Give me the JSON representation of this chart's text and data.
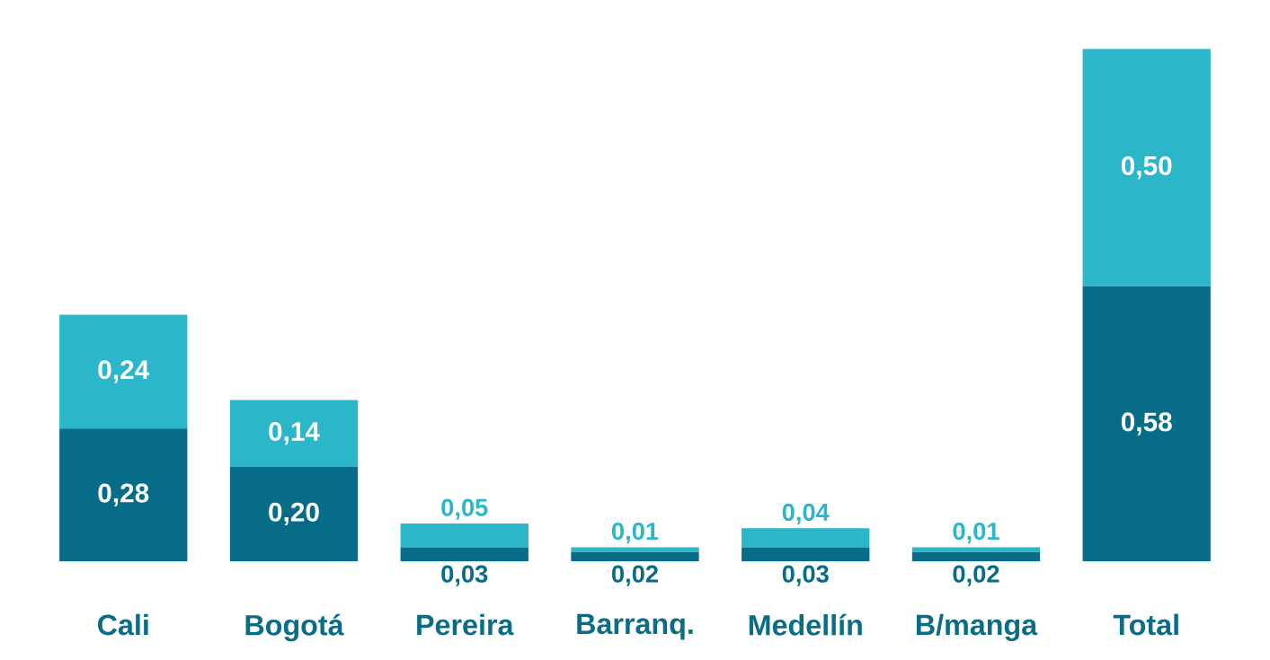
{
  "chart_data": {
    "type": "bar",
    "stacked": true,
    "categories": [
      "Cali",
      "Bogotá",
      "Pereira",
      "Barranq.",
      "Medellín",
      "B/manga",
      "Total"
    ],
    "series": [
      {
        "color": "#066c87",
        "values": [
          0.28,
          0.2,
          0.03,
          0.02,
          0.03,
          0.02,
          0.58
        ],
        "value_labels": [
          "0,28",
          "0,20",
          "0,03",
          "0,02",
          "0,03",
          "0,02",
          "0,58"
        ]
      },
      {
        "color": "#2bb6c9",
        "values": [
          0.24,
          0.14,
          0.05,
          0.01,
          0.04,
          0.01,
          0.5
        ],
        "value_labels": [
          "0,24",
          "0,14",
          "0,05",
          "0,01",
          "0,04",
          "0,01",
          "0,50"
        ]
      }
    ]
  }
}
